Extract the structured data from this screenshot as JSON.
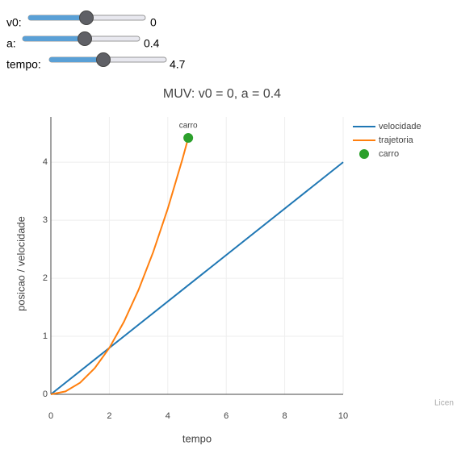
{
  "controls": [
    {
      "label": "v0:",
      "value": "0"
    },
    {
      "label": "a:",
      "value": "0.4"
    },
    {
      "label": "tempo:",
      "value": "4.7"
    }
  ],
  "chart_data": {
    "type": "line",
    "title": "MUV: v0 = 0, a = 0.4",
    "x_label": "tempo",
    "y_label": "posicao / velocidade",
    "xlim": [
      0,
      10
    ],
    "xticks": [
      0,
      2,
      4,
      6,
      8,
      10
    ],
    "ylim": [
      0,
      4.78
    ],
    "yticks": [
      0,
      1,
      2,
      3,
      4
    ],
    "grid": true,
    "legend": "top-right",
    "series": [
      {
        "name": "velocidade",
        "color": "#1f77b4",
        "mode": "lines",
        "x": [
          0,
          10
        ],
        "values": [
          0,
          4
        ]
      },
      {
        "name": "trajetoria",
        "color": "#ff7f0e",
        "mode": "lines",
        "x": [
          0,
          0.5,
          1,
          1.5,
          2,
          2.5,
          3,
          3.5,
          4,
          4.5,
          4.7
        ],
        "values": [
          0,
          0.05,
          0.2,
          0.45,
          0.8,
          1.25,
          1.8,
          2.45,
          3.2,
          4.05,
          4.418
        ]
      },
      {
        "name": "carro",
        "color": "#2ca02c",
        "mode": "markers",
        "x": [
          4.7
        ],
        "values": [
          4.418
        ],
        "text": "carro"
      }
    ],
    "footer": "Licen"
  }
}
